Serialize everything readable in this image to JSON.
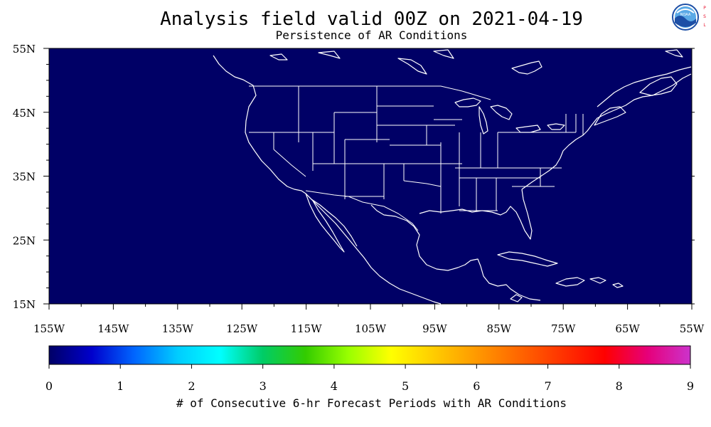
{
  "title": "Analysis field valid 00Z on 2021-04-19",
  "subtitle": "Persistence of AR Conditions",
  "logo": {
    "name": "NOAA",
    "side_text": "PSL",
    "colors": {
      "blue": "#1d4fa6",
      "sky": "#5aa9e6",
      "red": "#e8112d"
    }
  },
  "map": {
    "projection": "cylindrical equidistant",
    "background_color": "#000066",
    "coastline_color": "#ffffff",
    "lon_range": [
      -155,
      -55
    ],
    "lat_range": [
      15,
      55
    ],
    "lon_ticks": [
      "155W",
      "145W",
      "135W",
      "125W",
      "115W",
      "105W",
      "95W",
      "85W",
      "75W",
      "65W",
      "55W"
    ],
    "lat_ticks": [
      "55N",
      "45N",
      "35N",
      "25N",
      "15N"
    ],
    "field_value_everywhere": 0
  },
  "colorbar": {
    "ticks": [
      "0",
      "1",
      "2",
      "3",
      "4",
      "5",
      "6",
      "7",
      "8",
      "9"
    ],
    "label": "# of Consecutive 6-hr Forecast Periods with AR Conditions",
    "colors": [
      "#000066",
      "#0000cc",
      "#0066ff",
      "#00ccff",
      "#00ffff",
      "#00cc66",
      "#33cc00",
      "#99ff00",
      "#ffff00",
      "#ffcc00",
      "#ff9900",
      "#ff6600",
      "#ff3300",
      "#ff0000",
      "#e6007a",
      "#cc33cc"
    ]
  }
}
